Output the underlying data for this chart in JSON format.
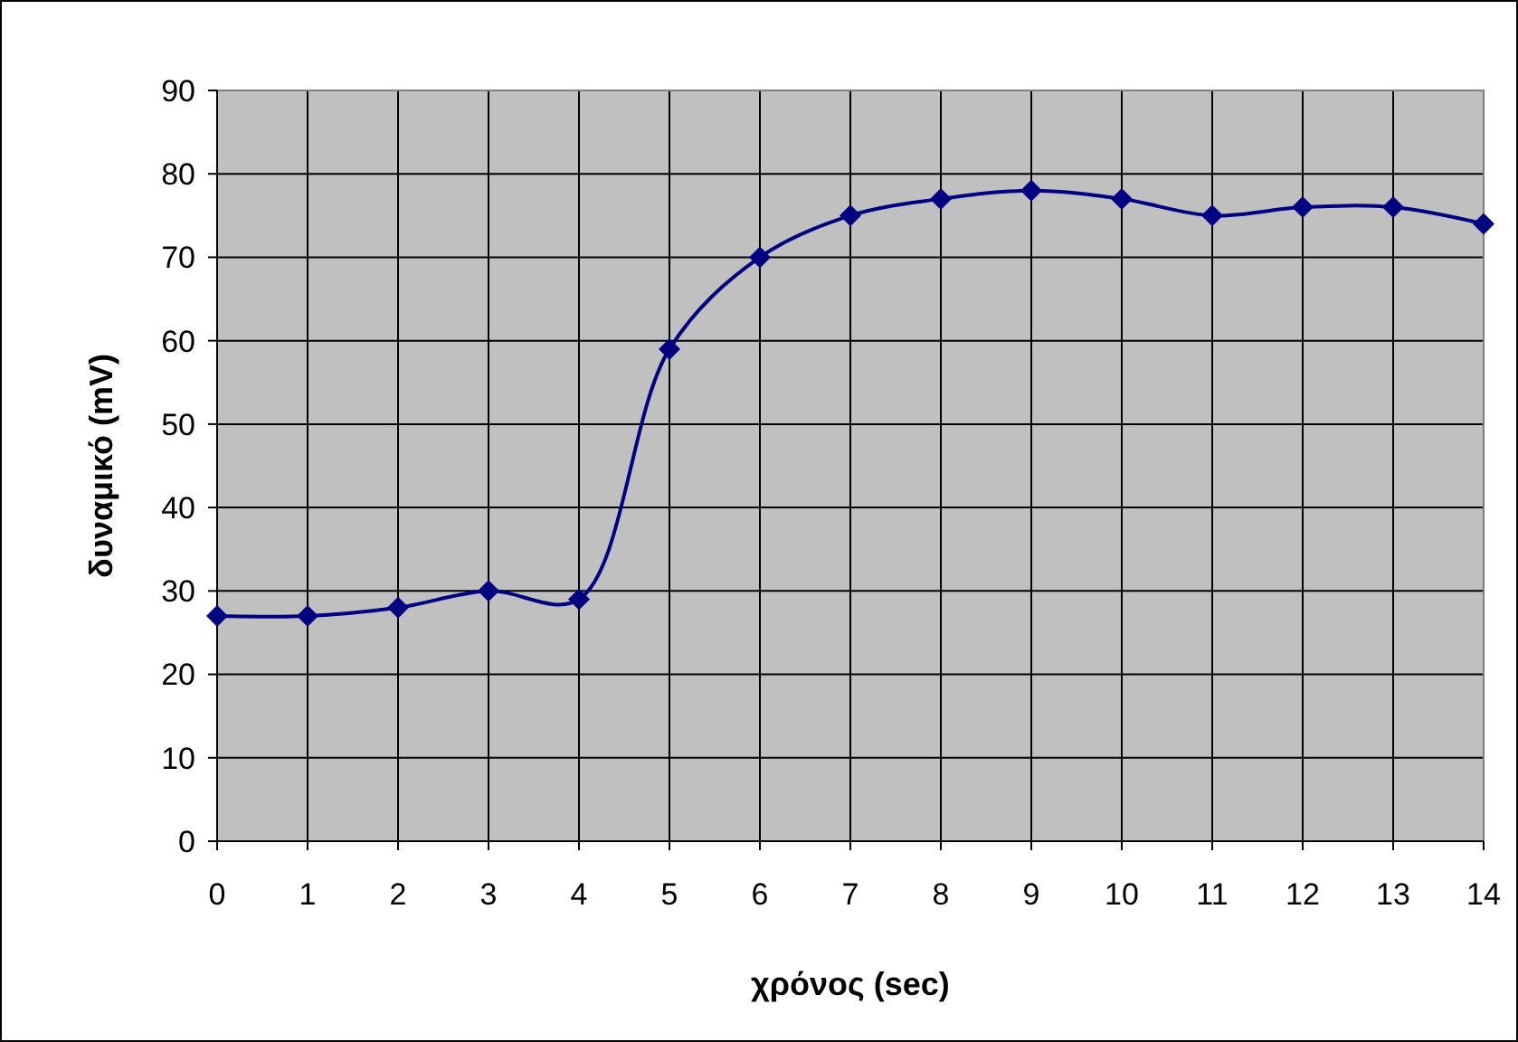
{
  "chart_data": {
    "type": "line",
    "xlabel": "χρόνος (sec)",
    "ylabel": "δυναμικό (mV)",
    "x": [
      0,
      1,
      2,
      3,
      4,
      5,
      6,
      7,
      8,
      9,
      10,
      11,
      12,
      13,
      14
    ],
    "series": [
      {
        "color": "#000080",
        "values": [
          27,
          27,
          28,
          30,
          29,
          59,
          70,
          75,
          77,
          78,
          77,
          75,
          76,
          76,
          74
        ]
      }
    ],
    "xlim": [
      0,
      14
    ],
    "xticks": [
      0,
      1,
      2,
      3,
      4,
      5,
      6,
      7,
      8,
      9,
      10,
      11,
      12,
      13,
      14
    ],
    "ylim": [
      0,
      90
    ],
    "yticks": [
      0,
      10,
      20,
      30,
      40,
      50,
      60,
      70,
      80,
      90
    ],
    "grid": true,
    "marker": "diamond",
    "line_style": "solid"
  }
}
